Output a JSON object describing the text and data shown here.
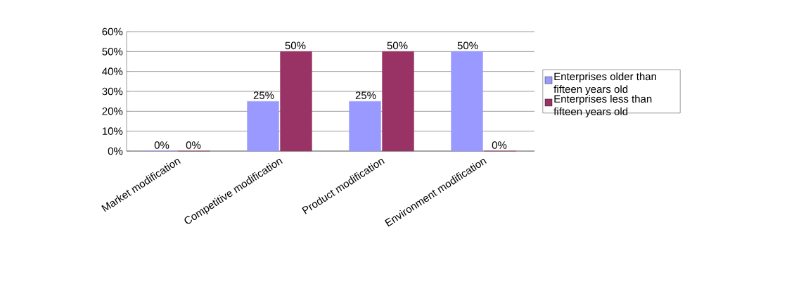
{
  "chart_data": {
    "type": "bar",
    "categories": [
      "Market modification",
      "Competitive modification",
      "Product modification",
      "Environment modification"
    ],
    "series": [
      {
        "name": "Enterprises older than fifteen years old",
        "color": "#9999ff",
        "values": [
          0,
          25,
          25,
          50
        ],
        "value_labels": [
          "0%",
          "25%",
          "25%",
          "50%"
        ]
      },
      {
        "name": "Enterprises less than fifteen years old",
        "color": "#993366",
        "values": [
          0,
          50,
          50,
          0
        ],
        "value_labels": [
          "0%",
          "50%",
          "50%",
          "0%"
        ]
      }
    ],
    "ylim": [
      0,
      60
    ],
    "yticks": [
      {
        "value": 0,
        "label": "0%"
      },
      {
        "value": 10,
        "label": "10%"
      },
      {
        "value": 20,
        "label": "20%"
      },
      {
        "value": 30,
        "label": "30%"
      },
      {
        "value": 40,
        "label": "40%"
      },
      {
        "value": 50,
        "label": "50%"
      },
      {
        "value": 60,
        "label": "60%"
      }
    ],
    "grid": "y",
    "legend": "right"
  }
}
